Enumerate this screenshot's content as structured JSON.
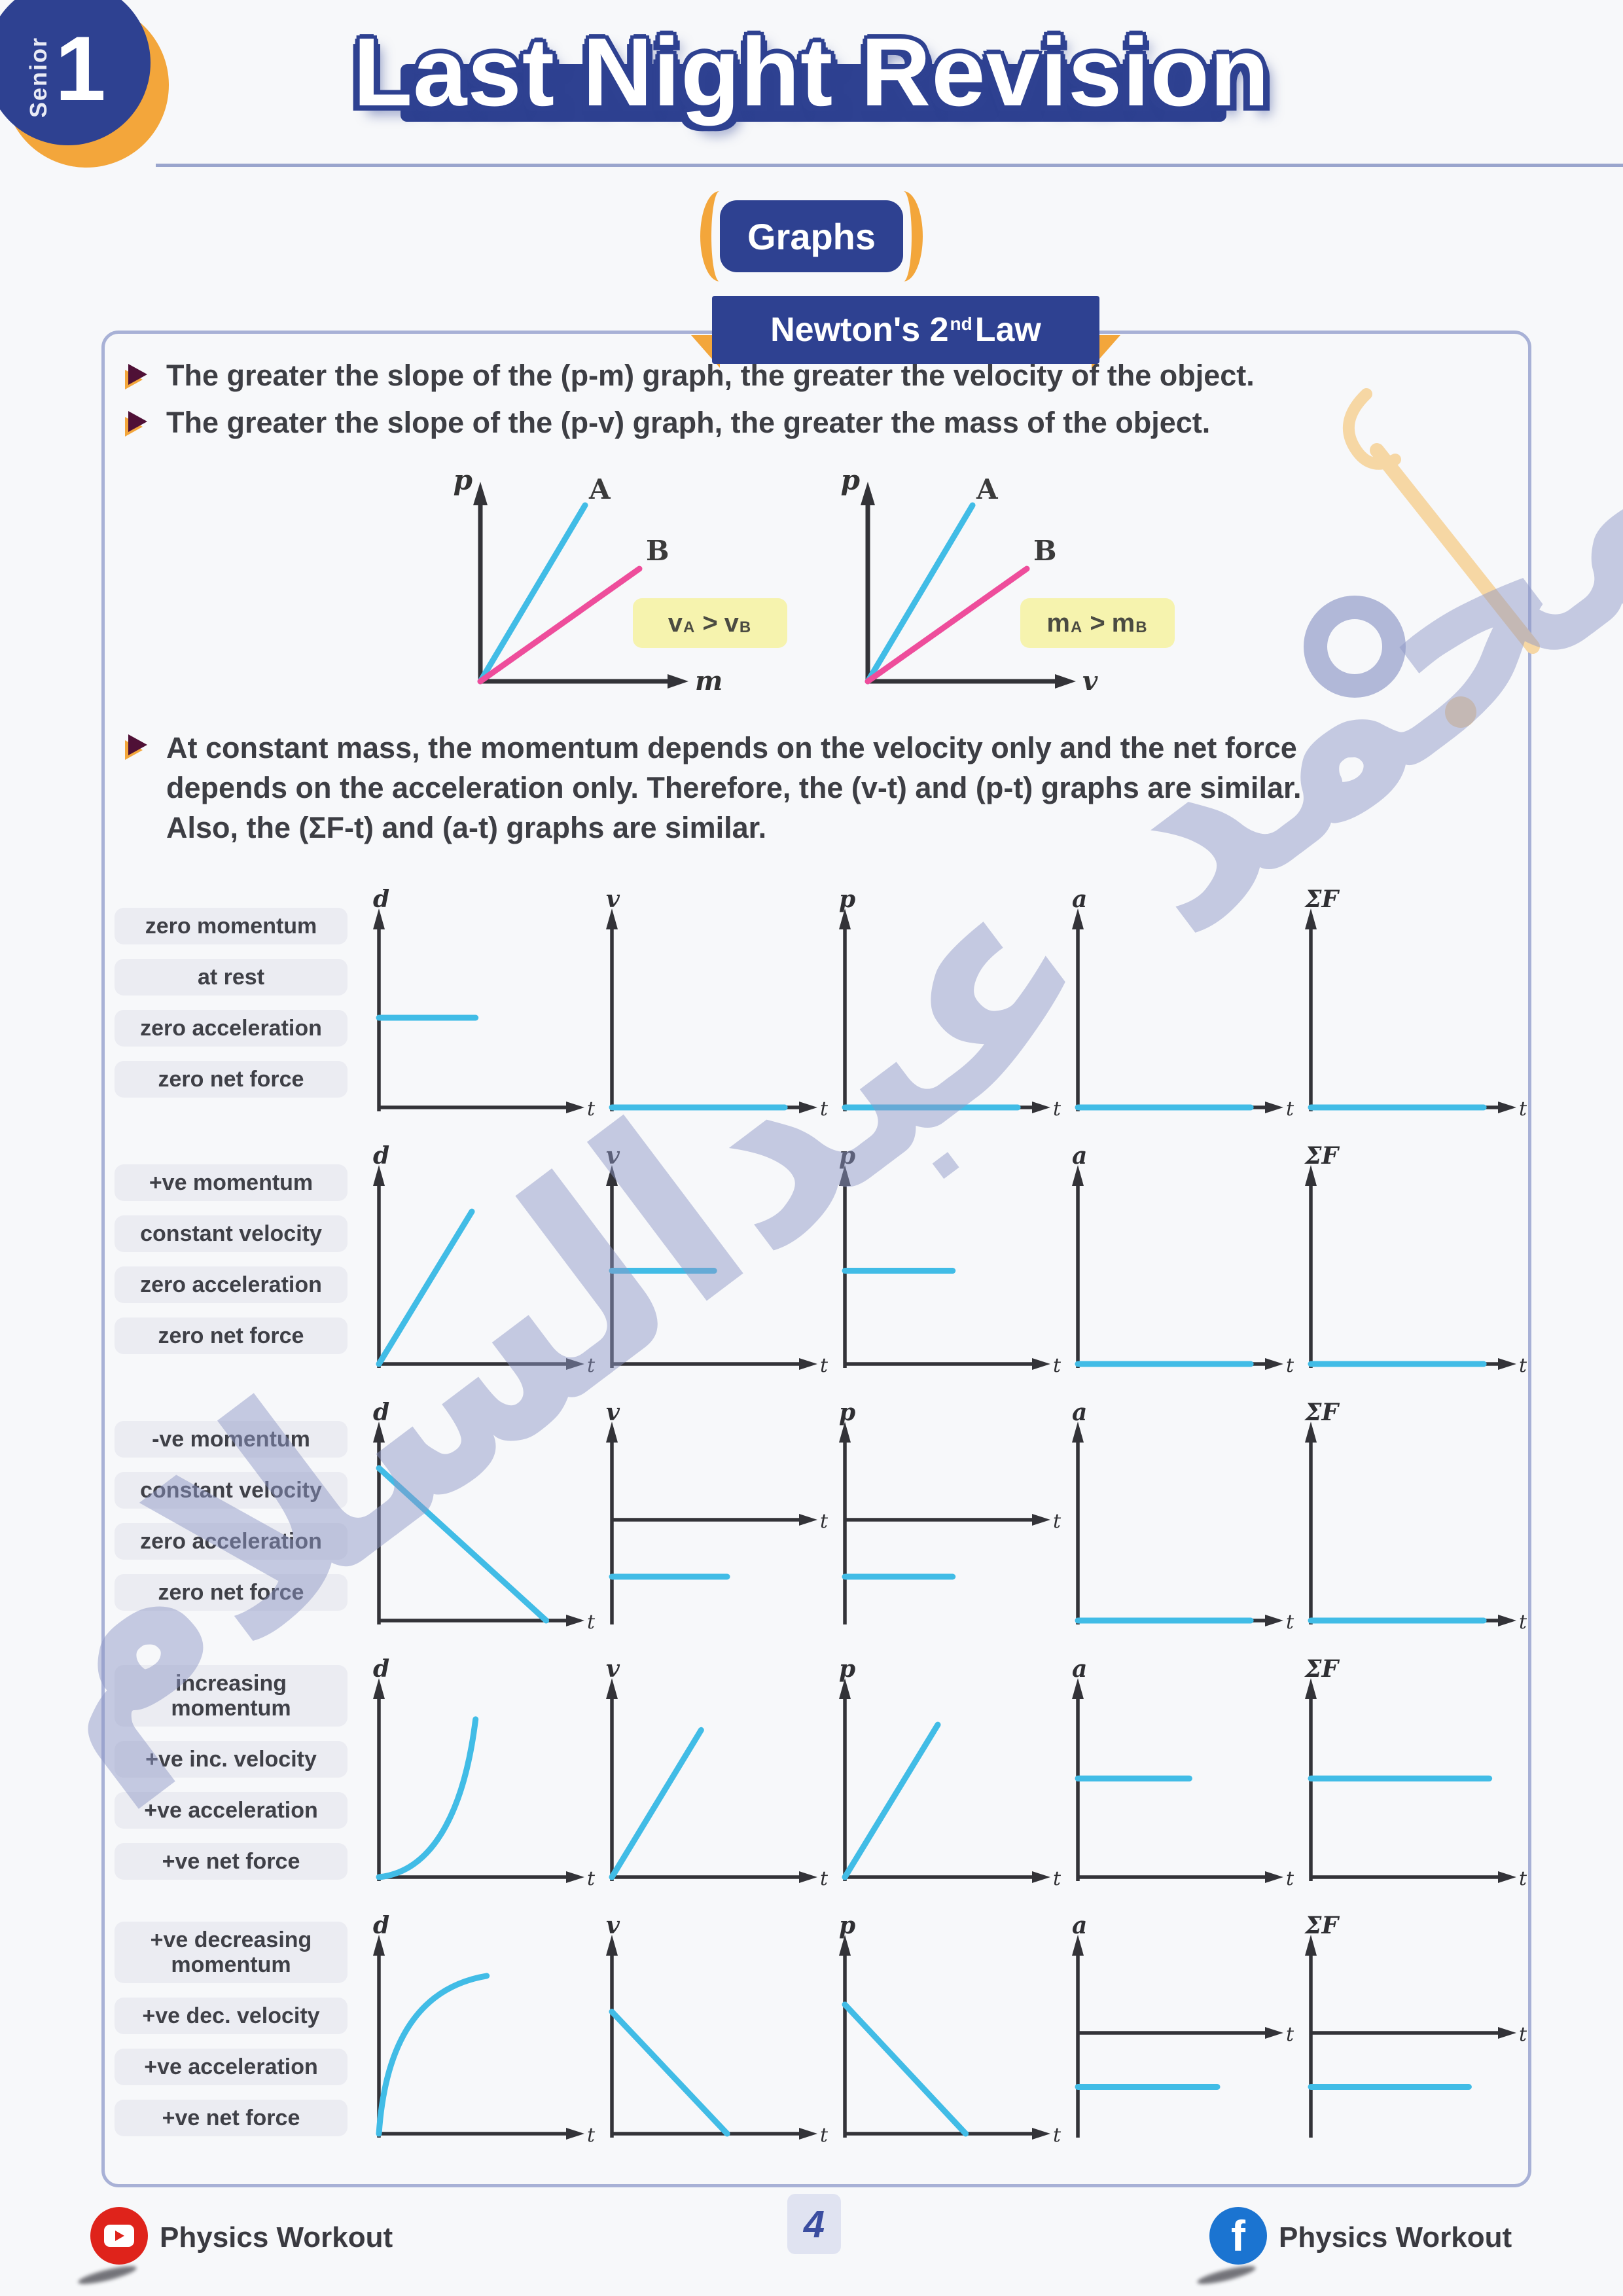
{
  "colors": {
    "navy": "#2e4191",
    "orange": "#f3a63b",
    "cyan": "#41bce6",
    "pink": "#ee4d9b",
    "axis": "#333338",
    "label_bg": "#ebecf2",
    "note_bg": "#f6f3ae",
    "watermark": "#8e97c6",
    "peach": "#f6d7a4"
  },
  "badge": {
    "series": "Senior",
    "number": "1"
  },
  "title": "Last Night Revision",
  "section": "Graphs",
  "banner": {
    "prefix": "Newton's 2",
    "sup": "nd",
    "suffix": " Law"
  },
  "bullets": [
    "The greater the slope of the (p-m) graph, the greater the velocity of the object.",
    "The greater the slope of the (p-v) graph, the greater the mass of the object."
  ],
  "paragraph_lines": [
    "At constant mass, the momentum depends on the velocity only and the net force",
    "depends on the acceleration only. Therefore, the (v-t) and (p-t) graphs are similar.",
    "Also, the (ΣF-t) and (a-t) graphs are similar."
  ],
  "mini_graphs": [
    {
      "y_axis": "p",
      "x_axis": "m",
      "line_a_label": "A",
      "line_b_label": "B",
      "note": {
        "l": "v",
        "ls": "A",
        "op": ">",
        "r": "v",
        "rs": "B"
      }
    },
    {
      "y_axis": "p",
      "x_axis": "v",
      "line_a_label": "A",
      "line_b_label": "B",
      "note": {
        "l": "m",
        "ls": "A",
        "op": ">",
        "r": "m",
        "rs": "B"
      }
    }
  ],
  "graph_table": {
    "x_label": "t",
    "columns": [
      "d",
      "v",
      "p",
      "a",
      "ΣF"
    ],
    "rows": [
      {
        "labels": [
          "zero momentum",
          "at rest",
          "zero acceleration",
          "zero net force"
        ],
        "cells": [
          {
            "axis": "bottom",
            "type": "flat",
            "y": 0.5,
            "x1": 0,
            "x2": 0.52
          },
          {
            "axis": "bottom",
            "type": "flat",
            "y": 0,
            "x1": 0,
            "x2": 0.93
          },
          {
            "axis": "bottom",
            "type": "flat",
            "y": 0,
            "x1": 0,
            "x2": 0.93
          },
          {
            "axis": "bottom",
            "type": "flat",
            "y": 0,
            "x1": 0,
            "x2": 0.93
          },
          {
            "axis": "bottom",
            "type": "flat",
            "y": 0,
            "x1": 0,
            "x2": 0.93
          }
        ]
      },
      {
        "labels": [
          "+ve momentum",
          "constant velocity",
          "zero acceleration",
          "zero net force"
        ],
        "cells": [
          {
            "axis": "bottom",
            "type": "line",
            "x1": 0,
            "y1": 0,
            "x2": 0.5,
            "y2": 0.85
          },
          {
            "axis": "bottom",
            "type": "flat",
            "y": 0.52,
            "x1": 0,
            "x2": 0.55
          },
          {
            "axis": "bottom",
            "type": "flat",
            "y": 0.52,
            "x1": 0,
            "x2": 0.58
          },
          {
            "axis": "bottom",
            "type": "flat",
            "y": 0,
            "x1": 0,
            "x2": 0.93
          },
          {
            "axis": "bottom",
            "type": "flat",
            "y": 0,
            "x1": 0,
            "x2": 0.93
          }
        ]
      },
      {
        "labels": [
          "-ve momentum",
          "constant velocity",
          "zero acceleration",
          "zero net force"
        ],
        "cells": [
          {
            "axis": "bottom",
            "type": "line",
            "x1": 0,
            "y1": 0.85,
            "x2": 0.9,
            "y2": 0
          },
          {
            "axis": "mid",
            "type": "flat",
            "y": -0.58,
            "x1": 0,
            "x2": 0.62
          },
          {
            "axis": "mid",
            "type": "flat",
            "y": -0.58,
            "x1": 0,
            "x2": 0.58
          },
          {
            "axis": "bottom",
            "type": "flat",
            "y": 0,
            "x1": 0,
            "x2": 0.93
          },
          {
            "axis": "bottom",
            "type": "flat",
            "y": 0,
            "x1": 0,
            "x2": 0.93
          }
        ]
      },
      {
        "labels": [
          "increasing\nmomentum",
          "+ve inc. velocity",
          "+ve acceleration",
          "+ve net force"
        ],
        "cells": [
          {
            "axis": "bottom",
            "type": "curve",
            "curve": "exp",
            "x2": 0.52,
            "y2": 0.88
          },
          {
            "axis": "bottom",
            "type": "line",
            "x1": 0,
            "y1": 0,
            "x2": 0.48,
            "y2": 0.82
          },
          {
            "axis": "bottom",
            "type": "line",
            "x1": 0,
            "y1": 0,
            "x2": 0.5,
            "y2": 0.85
          },
          {
            "axis": "bottom",
            "type": "flat",
            "y": 0.55,
            "x1": 0,
            "x2": 0.6
          },
          {
            "axis": "bottom",
            "type": "flat",
            "y": 0.55,
            "x1": 0,
            "x2": 0.96
          }
        ]
      },
      {
        "labels": [
          "+ve decreasing\nmomentum",
          "+ve dec. velocity",
          "+ve acceleration",
          "+ve net force"
        ],
        "cells": [
          {
            "axis": "bottom",
            "type": "curve",
            "curve": "sqrt",
            "x2": 0.58,
            "y2": 0.88
          },
          {
            "axis": "bottom",
            "type": "line",
            "x1": 0,
            "y1": 0.68,
            "x2": 0.62,
            "y2": 0
          },
          {
            "axis": "bottom",
            "type": "line",
            "x1": 0,
            "y1": 0.72,
            "x2": 0.65,
            "y2": 0
          },
          {
            "axis": "mid",
            "type": "flat",
            "y": -0.55,
            "x1": 0,
            "x2": 0.75
          },
          {
            "axis": "mid",
            "type": "flat",
            "y": -0.55,
            "x1": 0,
            "x2": 0.85
          }
        ]
      }
    ]
  },
  "watermark": {
    "text": "محمد عبدالسلام"
  },
  "footer": {
    "left_label": "Physics Workout",
    "page": "4",
    "right_label": "Physics Workout"
  }
}
